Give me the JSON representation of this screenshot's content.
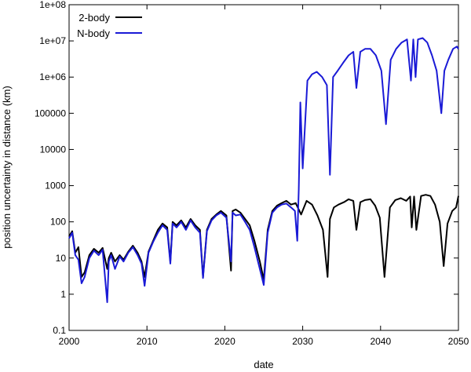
{
  "chart_data": {
    "type": "line",
    "title": "",
    "xlabel": "date",
    "ylabel": "position uncertainty in distance (km)",
    "xlim": [
      2000,
      2050
    ],
    "ylim": [
      0.1,
      100000000
    ],
    "yscale": "log",
    "grid": false,
    "legend_position": "top-left",
    "x_ticks": [
      2000,
      2010,
      2020,
      2030,
      2040,
      2050
    ],
    "x_tick_labels": [
      "2000",
      "2010",
      "2020",
      "2030",
      "2040",
      "2050"
    ],
    "y_ticks": [
      0.1,
      1,
      10,
      100,
      1000,
      10000,
      100000,
      1000000,
      10000000,
      100000000
    ],
    "y_tick_labels": [
      "0.1",
      "1",
      "10",
      "100",
      "1000",
      "10000",
      "100000",
      "1e+06",
      "1e+07",
      "1e+08"
    ],
    "series": [
      {
        "name": "2-body",
        "color": "#000000",
        "x": [
          2000,
          2000.4,
          2000.8,
          2001.2,
          2001.6,
          2002.0,
          2002.6,
          2003.2,
          2003.8,
          2004.3,
          2004.9,
          2005.1,
          2005.4,
          2005.9,
          2006.5,
          2007.0,
          2007.6,
          2008.2,
          2008.8,
          2009.3,
          2009.7,
          2010.2,
          2010.8,
          2011.4,
          2012.0,
          2012.6,
          2013.0,
          2013.3,
          2013.8,
          2014.4,
          2015.0,
          2015.6,
          2016.2,
          2016.8,
          2017.2,
          2017.7,
          2018.3,
          2018.9,
          2019.5,
          2020.2,
          2020.8,
          2021.0,
          2021.4,
          2022.0,
          2022.6,
          2023.2,
          2023.8,
          2024.5,
          2025.0,
          2025.5,
          2026.1,
          2026.7,
          2027.3,
          2027.9,
          2028.5,
          2029.1,
          2029.8,
          2030.5,
          2031.2,
          2031.9,
          2032.6,
          2033.2,
          2033.5,
          2034.0,
          2034.6,
          2035.3,
          2035.9,
          2036.5,
          2036.9,
          2037.4,
          2038.0,
          2038.7,
          2039.3,
          2039.9,
          2040.5,
          2041.2,
          2041.9,
          2042.6,
          2043.3,
          2043.8,
          2044.0,
          2044.3,
          2044.6,
          2045.2,
          2045.8,
          2046.4,
          2047.0,
          2047.6,
          2048.1,
          2048.6,
          2049.2,
          2049.7,
          2050
        ],
        "values": [
          40,
          55,
          14,
          20,
          3,
          4,
          12,
          18,
          14,
          19,
          5,
          10,
          14,
          8,
          12,
          9,
          15,
          22,
          14,
          8,
          3,
          15,
          30,
          60,
          90,
          70,
          8,
          100,
          80,
          110,
          70,
          120,
          80,
          60,
          3,
          60,
          120,
          160,
          200,
          150,
          4.5,
          200,
          220,
          180,
          120,
          80,
          30,
          8,
          2.5,
          60,
          200,
          280,
          330,
          380,
          300,
          330,
          160,
          380,
          300,
          150,
          60,
          3,
          120,
          250,
          300,
          350,
          420,
          380,
          60,
          350,
          400,
          420,
          280,
          130,
          3,
          250,
          400,
          450,
          380,
          500,
          70,
          500,
          60,
          520,
          560,
          520,
          300,
          100,
          6,
          90,
          200,
          250,
          520
        ]
      },
      {
        "name": "N-body",
        "color": "#1a1ad6",
        "x": [
          2000,
          2000.4,
          2000.8,
          2001.2,
          2001.6,
          2002.0,
          2002.6,
          2003.2,
          2003.8,
          2004.3,
          2004.9,
          2005.1,
          2005.4,
          2005.9,
          2006.5,
          2007.0,
          2007.6,
          2008.2,
          2008.8,
          2009.3,
          2009.7,
          2010.2,
          2010.8,
          2011.4,
          2012.0,
          2012.6,
          2013.0,
          2013.3,
          2013.8,
          2014.4,
          2015.0,
          2015.6,
          2016.2,
          2016.8,
          2017.2,
          2017.7,
          2018.3,
          2018.9,
          2019.5,
          2020.2,
          2020.8,
          2021.0,
          2021.4,
          2022.0,
          2022.6,
          2023.2,
          2023.8,
          2024.5,
          2025.0,
          2025.5,
          2026.1,
          2026.7,
          2027.3,
          2027.9,
          2028.5,
          2029.0,
          2029.3,
          2029.5,
          2029.7,
          2030.0,
          2030.6,
          2031.2,
          2031.8,
          2032.5,
          2033.1,
          2033.5,
          2033.9,
          2034.5,
          2035.2,
          2035.9,
          2036.5,
          2036.9,
          2037.4,
          2038.0,
          2038.7,
          2039.4,
          2040.1,
          2040.7,
          2041.3,
          2042.0,
          2042.7,
          2043.4,
          2043.9,
          2044.2,
          2044.5,
          2044.8,
          2045.4,
          2046.0,
          2046.6,
          2047.2,
          2047.8,
          2048.2,
          2048.7,
          2049.3,
          2049.8,
          2050
        ],
        "values": [
          35,
          50,
          12,
          9,
          2,
          3,
          10,
          16,
          12,
          17,
          0.6,
          8,
          12,
          5,
          11,
          8,
          14,
          20,
          12,
          7,
          1.7,
          14,
          28,
          50,
          80,
          60,
          7,
          90,
          70,
          100,
          60,
          110,
          70,
          50,
          2.8,
          55,
          110,
          150,
          180,
          130,
          8,
          180,
          150,
          160,
          100,
          60,
          20,
          5,
          1.8,
          50,
          180,
          250,
          300,
          320,
          250,
          200,
          30,
          800,
          200000,
          3000,
          800000,
          1200000,
          1400000,
          1000000,
          600000,
          2000,
          1000000,
          1500000,
          2500000,
          4000000,
          5000000,
          500000,
          5000000,
          6000000,
          6000000,
          4000000,
          1500000,
          50000,
          3000000,
          6000000,
          9000000,
          11000000,
          800000,
          11000000,
          1000000,
          11000000,
          12000000,
          9000000,
          4000000,
          1500000,
          100000,
          1500000,
          3000000,
          6000000,
          7000000,
          6000000
        ]
      }
    ]
  }
}
